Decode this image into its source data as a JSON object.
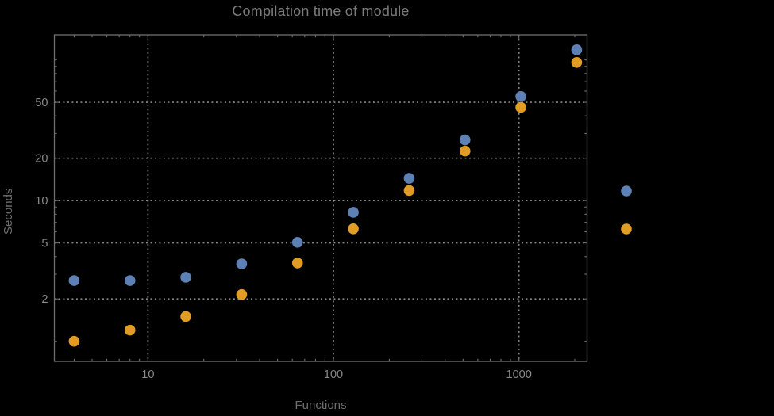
{
  "chart_data": {
    "type": "scatter",
    "title": "Compilation time of module",
    "xlabel": "Functions",
    "ylabel": "Seconds",
    "x_scale": "log",
    "y_scale": "log",
    "xlim": [
      3.13,
      2330
    ],
    "ylim": [
      0.72,
      150.7
    ],
    "grid": "dotted lines at major ticks, both axes",
    "legend_position": "outside-right, markers only, no visible labels",
    "x": [
      4,
      8,
      16,
      32,
      64,
      128,
      256,
      512,
      1024,
      2048
    ],
    "series": [
      {
        "name": "series-1-blue",
        "color": "#5E81B5",
        "values": [
          2.7,
          2.7,
          2.85,
          3.55,
          5.05,
          8.25,
          14.4,
          27,
          55,
          118
        ]
      },
      {
        "name": "series-2-orange",
        "color": "#E19C24",
        "values": [
          1.0,
          1.2,
          1.5,
          2.15,
          3.6,
          6.3,
          11.8,
          22.5,
          46,
          96
        ]
      }
    ],
    "x_ticks": {
      "major": [
        10,
        100,
        1000
      ],
      "major_labels": [
        "10",
        "100",
        "1000"
      ],
      "minor": [
        4,
        5,
        6,
        7,
        8,
        9,
        20,
        30,
        40,
        50,
        60,
        70,
        80,
        90,
        200,
        300,
        400,
        500,
        600,
        700,
        800,
        900,
        2000
      ]
    },
    "y_ticks": {
      "major": [
        2,
        5,
        10,
        20,
        50
      ],
      "major_labels": [
        "2",
        "5",
        "10",
        "20",
        "50"
      ],
      "minor": [
        1,
        3,
        4,
        6,
        7,
        8,
        9,
        30,
        40,
        60,
        70,
        80,
        90,
        100
      ]
    },
    "legend": {
      "entries": [
        {
          "marker": "disk",
          "color": "#5E81B5",
          "label": ""
        },
        {
          "marker": "disk",
          "color": "#E19C24",
          "label": ""
        }
      ]
    },
    "colors": {
      "background": "#000000",
      "frame": "#6f6f6f",
      "grid": "#8a8a8a",
      "tick_label": "#898989",
      "title": "#7a7a7a",
      "axis_label": "#6e6e6e"
    }
  }
}
